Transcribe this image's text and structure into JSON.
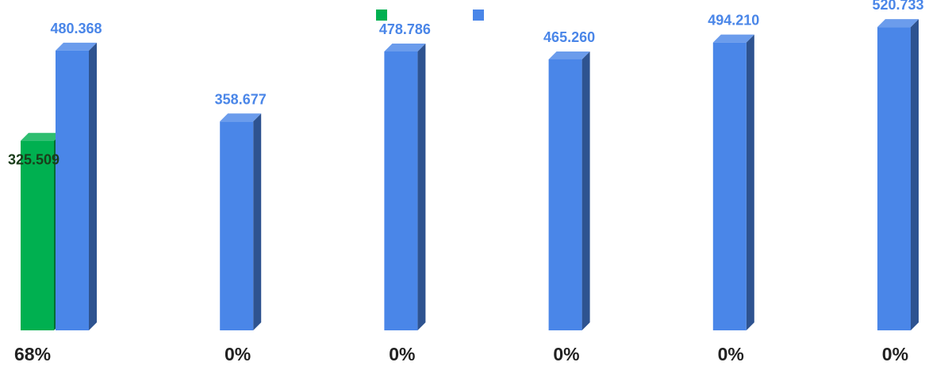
{
  "chart_data": {
    "type": "bar",
    "style": "3d-column",
    "categories": [
      "68%",
      "0%",
      "0%",
      "0%",
      "0%",
      "0%"
    ],
    "series": [
      {
        "color": "#00b050",
        "values": [
          325.509,
          null,
          null,
          null,
          null,
          null
        ],
        "data_labels": [
          "325.509",
          "",
          "",
          "",
          "",
          ""
        ]
      },
      {
        "color": "#4a86e8",
        "values": [
          480.368,
          358.677,
          478.786,
          465.26,
          494.21,
          520.733
        ],
        "data_labels": [
          "480.368",
          "358.677",
          "478.786",
          "465.260",
          "494.210",
          "520.733"
        ]
      }
    ],
    "ylim": [
      0,
      540
    ],
    "grid": false,
    "legend": "top-center"
  }
}
